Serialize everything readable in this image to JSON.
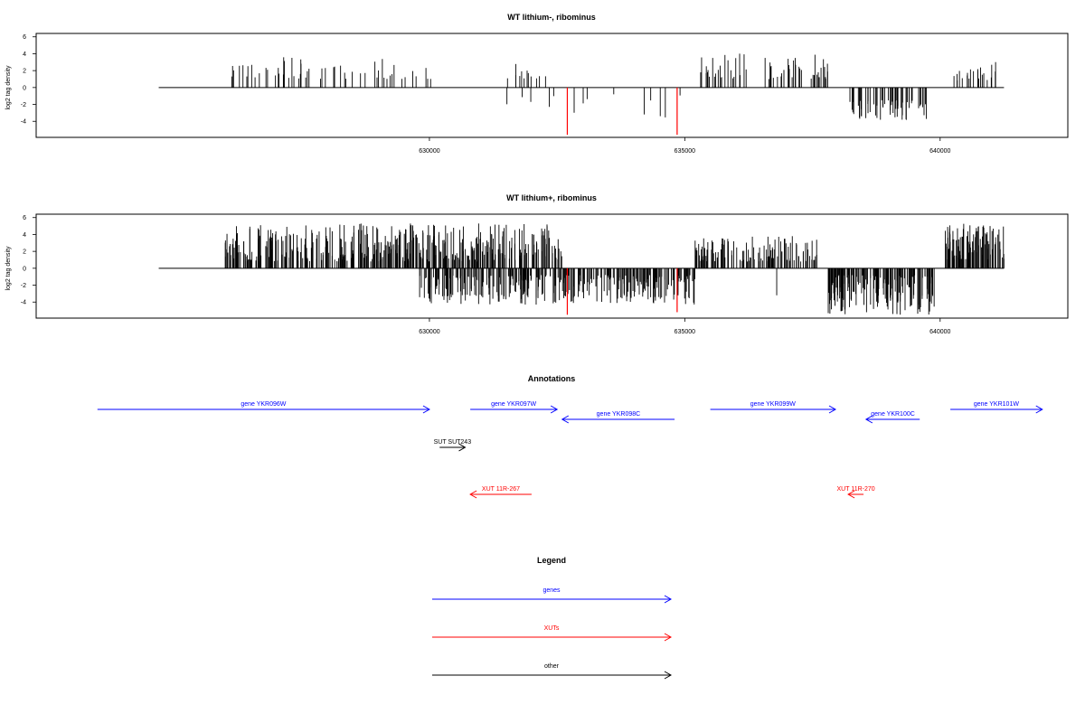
{
  "colors": {
    "gene": "#0000ff",
    "xut": "#ff0000",
    "other": "#000000",
    "highlight": "#ff0000",
    "bar": "#000000"
  },
  "chart_data": [
    {
      "type": "bar",
      "title": "WT lithium-, ribominus",
      "ylabel": "log2 tag density",
      "xlim": [
        622300,
        642500
      ],
      "ylim": [
        -5.9,
        6.4
      ],
      "yticks": [
        6,
        4,
        2,
        0,
        -2,
        -4
      ],
      "xticks": [
        630000,
        635000,
        640000
      ],
      "highlight_positions": [
        632700,
        634850
      ],
      "segments": [
        {
          "start": 626000,
          "end": 630100,
          "sign": 1,
          "min": 1.0,
          "max": 3.6,
          "count": 55,
          "seed": 11
        },
        {
          "start": 631500,
          "end": 632300,
          "sign": 1,
          "min": 1.0,
          "max": 2.9,
          "count": 12,
          "seed": 12
        },
        {
          "start": 635300,
          "end": 637800,
          "sign": 1,
          "min": 1.0,
          "max": 4.1,
          "count": 60,
          "seed": 13
        },
        {
          "start": 640100,
          "end": 641250,
          "sign": 1,
          "min": 0.8,
          "max": 3.5,
          "count": 22,
          "seed": 14
        },
        {
          "start": 631500,
          "end": 635000,
          "sign": -1,
          "min": 0.8,
          "max": 3.6,
          "count": 14,
          "seed": 15
        },
        {
          "start": 638200,
          "end": 639800,
          "sign": -1,
          "min": 1.5,
          "max": 3.9,
          "count": 60,
          "seed": 16
        }
      ],
      "highlight_values": [
        -5.6,
        -5.6
      ]
    },
    {
      "type": "bar",
      "title": "WT lithium+, ribominus",
      "ylabel": "log2 tag density",
      "xlim": [
        622300,
        642500
      ],
      "ylim": [
        -5.9,
        6.4
      ],
      "yticks": [
        6,
        4,
        2,
        0,
        -2,
        -4
      ],
      "xticks": [
        630000,
        635000,
        640000
      ],
      "highlight_positions": [
        632700,
        634850
      ],
      "segments": [
        {
          "start": 626000,
          "end": 632600,
          "sign": 1,
          "min": 0.8,
          "max": 5.3,
          "count": 420,
          "seed": 21
        },
        {
          "start": 635200,
          "end": 637600,
          "sign": 1,
          "min": 0.8,
          "max": 3.8,
          "count": 120,
          "seed": 22
        },
        {
          "start": 640100,
          "end": 641250,
          "sign": 1,
          "min": 1.0,
          "max": 5.3,
          "count": 110,
          "seed": 23
        },
        {
          "start": 629800,
          "end": 635200,
          "sign": -1,
          "min": 0.8,
          "max": 4.3,
          "count": 330,
          "seed": 24
        },
        {
          "start": 637800,
          "end": 639900,
          "sign": -1,
          "min": 0.8,
          "max": 5.5,
          "count": 180,
          "seed": 25
        },
        {
          "start": 636800,
          "end": 636800,
          "sign": -1,
          "min": 3.2,
          "max": 3.2,
          "count": 1,
          "seed": 26
        }
      ],
      "highlight_values": [
        -5.5,
        -5.2
      ]
    }
  ],
  "annotations": {
    "title": "Annotations",
    "features": [
      {
        "label": "gene YKR096W",
        "type": "gene",
        "start": 623500,
        "end": 630000,
        "strand": "+",
        "row": 0
      },
      {
        "label": "gene YKR097W",
        "type": "gene",
        "start": 630800,
        "end": 632500,
        "strand": "+",
        "row": 0
      },
      {
        "label": "gene YKR098C",
        "type": "gene",
        "start": 632600,
        "end": 634800,
        "strand": "-",
        "row": 1
      },
      {
        "label": "gene YKR099W",
        "type": "gene",
        "start": 635500,
        "end": 637950,
        "strand": "+",
        "row": 0
      },
      {
        "label": "gene YKR100C",
        "type": "gene",
        "start": 638550,
        "end": 639600,
        "strand": "-",
        "row": 1
      },
      {
        "label": "gene YKR101W",
        "type": "gene",
        "start": 640200,
        "end": 642000,
        "strand": "+",
        "row": 0
      },
      {
        "label": "SUT SUT243",
        "type": "other",
        "start": 630200,
        "end": 630700,
        "strand": "+",
        "row": 2
      },
      {
        "label": "XUT 11R-267",
        "type": "xut",
        "start": 630800,
        "end": 632000,
        "strand": "-",
        "row": 3
      },
      {
        "label": "XUT 11R-270",
        "type": "xut",
        "start": 638200,
        "end": 638500,
        "strand": "-",
        "row": 3
      }
    ]
  },
  "legend": {
    "title": "Legend",
    "items": [
      {
        "label": "genes",
        "type": "gene"
      },
      {
        "label": "XUTs",
        "type": "xut"
      },
      {
        "label": "other",
        "type": "other"
      }
    ]
  }
}
